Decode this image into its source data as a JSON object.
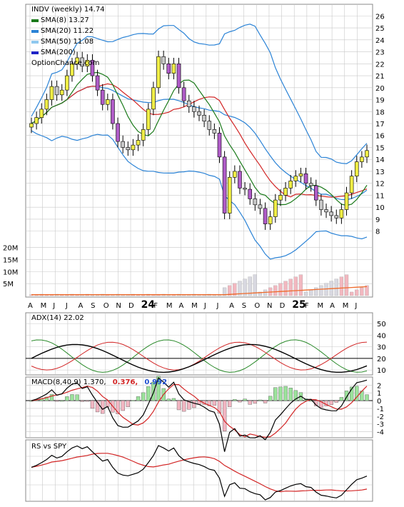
{
  "header": {
    "title": "INDV (weekly) 14.74",
    "watermark": "OptionChance.com"
  },
  "legend": [
    {
      "label": "SMA(8) 13.27",
      "color": "#1a7a1a"
    },
    {
      "label": "SMA(20) 11.22",
      "color": "#2b83d6"
    },
    {
      "label": "SMA(50) 11.08",
      "color": "#8fc8ef"
    },
    {
      "label": "SMA(200)",
      "color": "#1f24c6"
    }
  ],
  "colors": {
    "up": "#f0ee46",
    "down": "#c8c8c8",
    "down_bar": "#b05cc8",
    "sma8": "#1a7a1a",
    "sma20": "#2b83d6",
    "sma50_red": "#d22525",
    "bb": "#2b83d6",
    "grid": "#c8c8c8",
    "vol_up": "#f2b8c0",
    "vol_dn": "#d8d8e0",
    "vol_line": "#ef6a2a"
  },
  "price_axis": [
    "26",
    "25",
    "24",
    "23",
    "22",
    "21",
    "20",
    "19",
    "18",
    "17",
    "16",
    "15",
    "14",
    "13",
    "12",
    "11",
    "10",
    "9",
    "8"
  ],
  "volume_axis": [
    "20M",
    "15M",
    "10M",
    "5M"
  ],
  "month_axis": [
    "A",
    "M",
    "J",
    "J",
    "A",
    "S",
    "O",
    "N",
    "D",
    "24",
    "F",
    "M",
    "A",
    "M",
    "J",
    "J",
    "A",
    "S",
    "O",
    "N",
    "D",
    "25",
    "F",
    "M",
    "A",
    "M",
    "J"
  ],
  "chart_data": [
    {
      "type": "line",
      "title": "INDV (weekly) 14.74",
      "ylim": [
        7.5,
        26.5
      ],
      "series": [
        {
          "name": "SMA(8) 13.27"
        },
        {
          "name": "SMA(20) 11.22"
        },
        {
          "name": "SMA(50) 11.08"
        },
        {
          "name": "SMA(200)"
        }
      ],
      "price_closes": [
        17.0,
        17.5,
        18.2,
        19.0,
        20.1,
        19.4,
        19.8,
        21.0,
        22.0,
        22.5,
        21.8,
        22.3,
        21.0,
        19.8,
        18.6,
        19.0,
        17.0,
        15.5,
        15.0,
        14.8,
        15.2,
        15.6,
        16.5,
        18.2,
        20.0,
        22.6,
        22.0,
        21.2,
        22.0,
        20.0,
        18.9,
        18.4,
        18.0,
        17.7,
        17.2,
        16.5,
        16.2,
        14.2,
        9.5,
        12.5,
        13.0,
        11.6,
        11.5,
        10.7,
        10.2,
        9.9,
        8.6,
        9.2,
        10.6,
        11.0,
        11.6,
        12.2,
        12.6,
        12.8,
        12.0,
        11.8,
        10.6,
        9.8,
        9.6,
        9.3,
        9.1,
        9.8,
        11.2,
        12.6,
        13.8,
        14.2,
        14.74
      ],
      "volume_axis_ticks": [
        "20M",
        "15M",
        "10M",
        "5M"
      ]
    },
    {
      "type": "line",
      "title": "ADX(14) 22.02",
      "yticks": [
        "50",
        "40",
        "30",
        "20",
        "10"
      ],
      "ylim": [
        7,
        55
      ]
    },
    {
      "type": "bar",
      "title": "MACD(8,40,9) 1.370, 0.376, 0.992",
      "series": [
        {
          "name": "MACD(8,40,9) 1.370",
          "last": 1.37
        },
        {
          "name": "0.376",
          "last": 0.376
        },
        {
          "name": "0.992",
          "last": 0.992
        }
      ],
      "yticks": [
        "2",
        "1",
        "0",
        "-1",
        "-2",
        "-3",
        "-4"
      ],
      "ylim": [
        -4.6,
        2.4
      ]
    },
    {
      "type": "line",
      "title": "RS vs SPY",
      "series": [
        {
          "name": "RS vs SPY"
        }
      ]
    }
  ],
  "panels": {
    "adx": {
      "label": "ADX(14) 22.02"
    },
    "macd": {
      "label": "MACD(8,40,9) 1.370,",
      "v2": "0.376,",
      "v3": "0.992"
    },
    "rs": {
      "label": "RS vs SPY"
    }
  }
}
